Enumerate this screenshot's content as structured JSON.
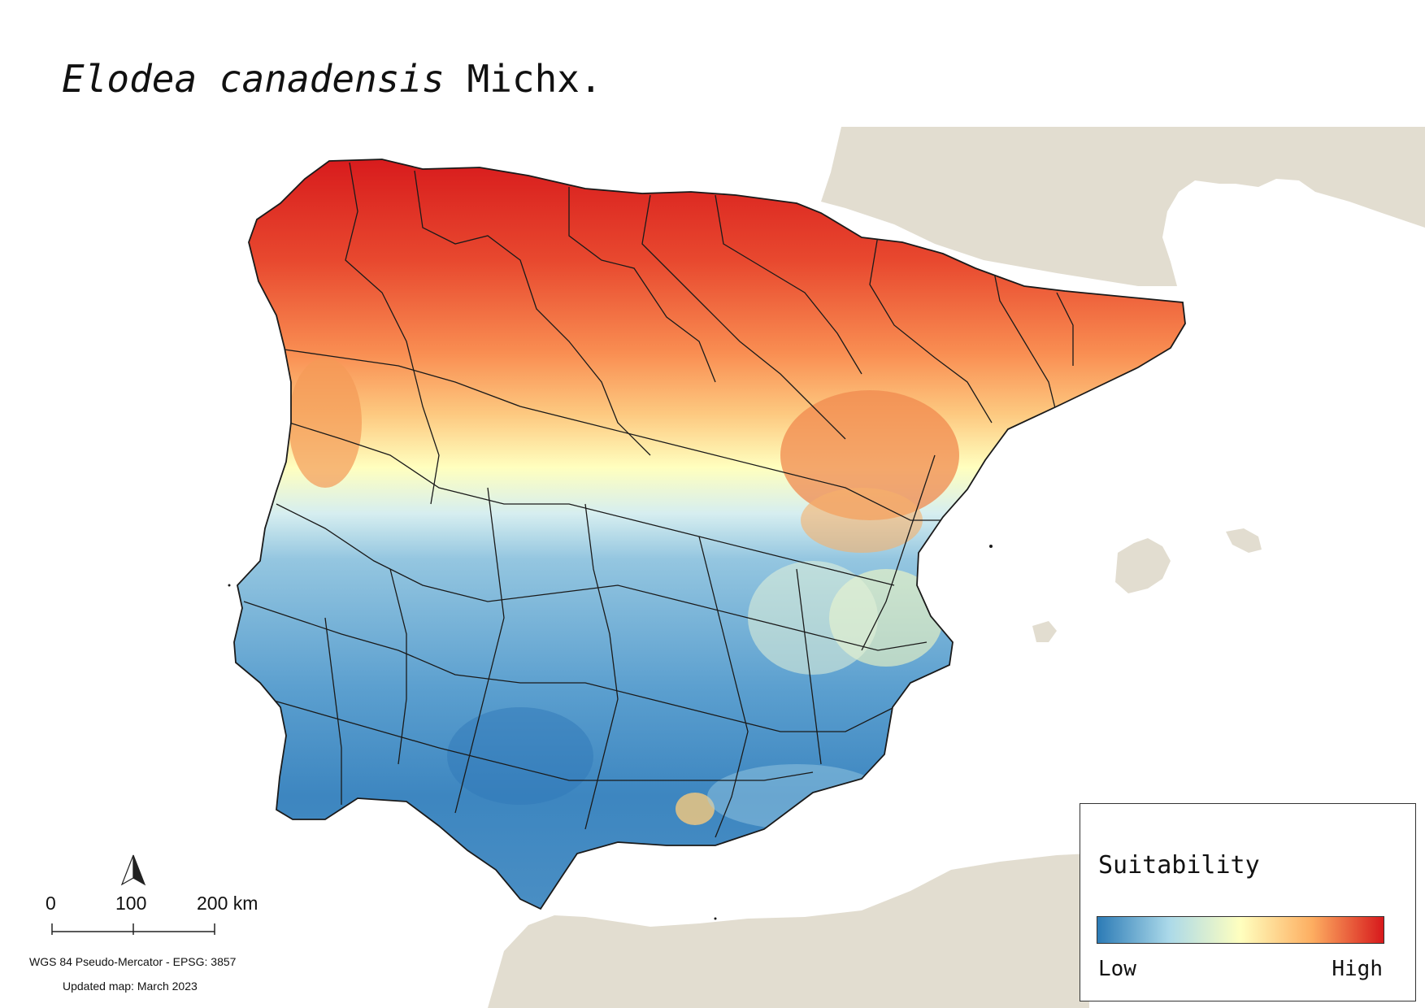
{
  "title": {
    "species": "Elodea canadensis",
    "author": "Michx."
  },
  "legend": {
    "title": "Suitability",
    "low_label": "Low",
    "high_label": "High",
    "ramp_colors": [
      "#2c7bb6",
      "#abd9e9",
      "#ffffbf",
      "#fdae61",
      "#d7191c"
    ]
  },
  "scalebar": {
    "labels": [
      "0",
      "100",
      "200 km"
    ]
  },
  "north_arrow": {
    "icon": "north-arrow-icon"
  },
  "crs_text": "WGS 84 Pseudo-Mercator  - EPSG: 3857",
  "updated_text": "Updated map: March 2023",
  "colors": {
    "land_background": "#e2ddd0",
    "sea": "#ffffff",
    "boundary": "#1a1a1a",
    "high": "#d7191c",
    "mid_high": "#fdae61",
    "mid": "#ffffbf",
    "mid_low": "#abd9e9",
    "low": "#2c7bb6"
  }
}
